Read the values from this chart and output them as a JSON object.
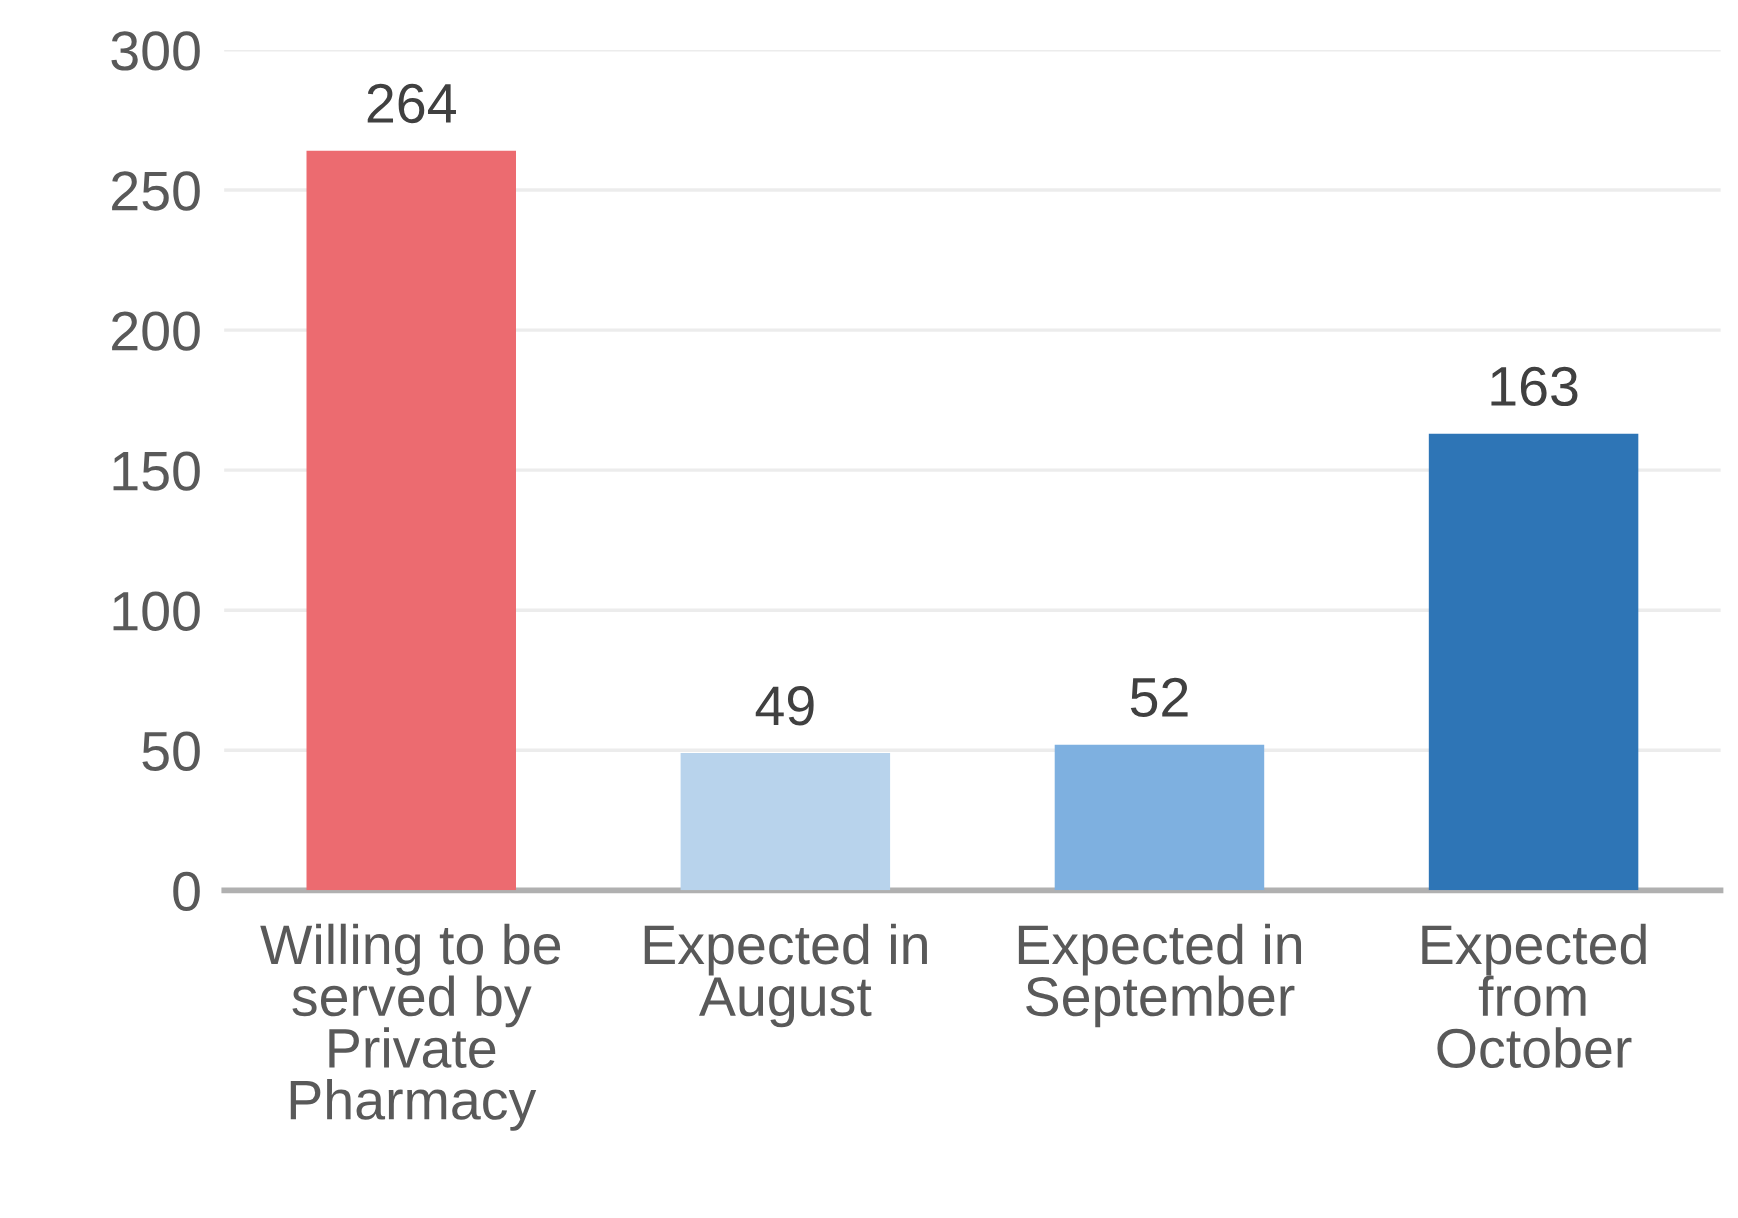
{
  "chart_data": {
    "type": "bar",
    "categories": [
      "Willing to be\nserved by\nPrivate\nPharmacy",
      "Expected in\nAugust",
      "Expected in\nSeptember",
      "Expected\nfrom\nOctober"
    ],
    "values": [
      264,
      49,
      52,
      163
    ],
    "colors": [
      "#ec6b70",
      "#b8d3ec",
      "#7eb0e0",
      "#2e75b6"
    ],
    "ylim": [
      0,
      300
    ],
    "yticks": [
      0,
      50,
      100,
      150,
      200,
      250,
      300
    ],
    "grid": "y",
    "data_labels": true,
    "legend": false
  }
}
